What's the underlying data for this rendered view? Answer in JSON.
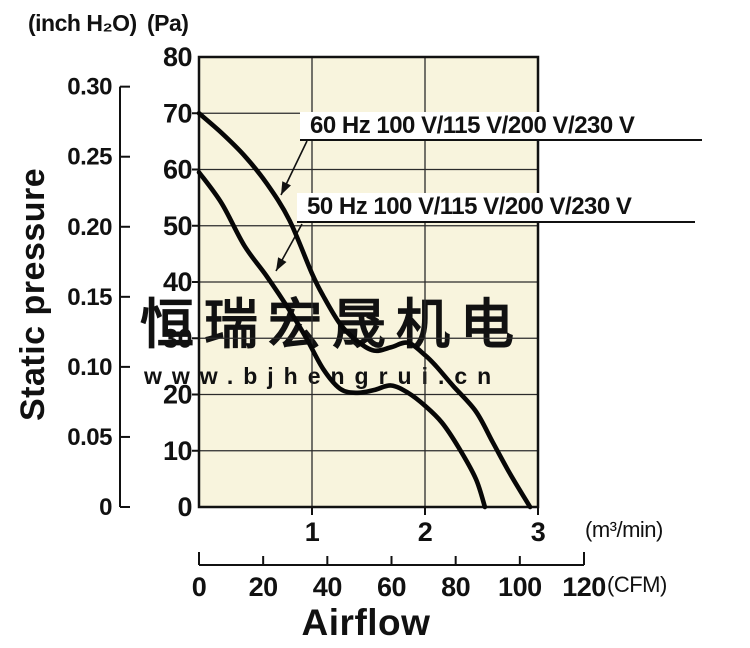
{
  "header": {
    "unit_left": "(inch H₂O)",
    "unit_right": "(Pa)"
  },
  "watermark": {
    "line1": "恒瑞宏晟机电",
    "line2": "www.bjhengrui.cn"
  },
  "colors": {
    "plot_bg": "#f8f4dd",
    "grid": "#2b2b2b",
    "box": "#111111",
    "curve": "#070707",
    "watermark1": "#c5bcb9",
    "watermark2": "#d2cdc9",
    "text": "#111111"
  },
  "chart_data": {
    "type": "line",
    "title": "",
    "xlabel": "Airflow",
    "ylabel": "Static pressure",
    "grid": true,
    "x_axis": {
      "primary_unit_label": "(m³/min)",
      "primary_ticks": [
        "1",
        "2",
        "3"
      ],
      "primary_range_m3min": [
        0,
        3
      ],
      "secondary_unit_label": "(CFM)",
      "secondary_ticks": [
        "0",
        "20",
        "40",
        "60",
        "80",
        "100",
        "120"
      ],
      "secondary_range_cfm": [
        0,
        120
      ]
    },
    "y_axis": {
      "primary_unit_label": "(Pa)",
      "primary_ticks": [
        "0",
        "10",
        "20",
        "30",
        "40",
        "50",
        "60",
        "70",
        "80"
      ],
      "primary_range_pa": [
        0,
        80
      ],
      "secondary_unit_label": "(inch H₂O)",
      "secondary_ticks": [
        "0",
        "0.05",
        "0.10",
        "0.15",
        "0.20",
        "0.25",
        "0.30"
      ],
      "secondary_range_inch_h2o": [
        0,
        0.3
      ]
    },
    "series": [
      {
        "label": "60 Hz 100 V/115 V/200 V/230 V",
        "points_m3min_pa": [
          [
            0,
            70
          ],
          [
            0.2,
            66.5
          ],
          [
            0.4,
            62.5
          ],
          [
            0.6,
            57.5
          ],
          [
            0.8,
            51
          ],
          [
            1.0,
            41.5
          ],
          [
            1.1,
            37.5
          ],
          [
            1.25,
            32.5
          ],
          [
            1.4,
            29.5
          ],
          [
            1.55,
            27.8
          ],
          [
            1.7,
            28.4
          ],
          [
            1.85,
            29.2
          ],
          [
            2.0,
            27
          ],
          [
            2.1,
            25
          ],
          [
            2.25,
            21.5
          ],
          [
            2.45,
            17
          ],
          [
            2.6,
            11.5
          ],
          [
            2.75,
            6
          ],
          [
            2.93,
            0
          ]
        ]
      },
      {
        "label": "50 Hz 100 V/115 V/200 V/230 V",
        "points_m3min_pa": [
          [
            0,
            59.5
          ],
          [
            0.2,
            54
          ],
          [
            0.4,
            46.5
          ],
          [
            0.6,
            41
          ],
          [
            0.8,
            35
          ],
          [
            0.95,
            30
          ],
          [
            1.1,
            24.5
          ],
          [
            1.25,
            21
          ],
          [
            1.4,
            20.3
          ],
          [
            1.55,
            20.8
          ],
          [
            1.7,
            21.6
          ],
          [
            1.85,
            20.3
          ],
          [
            2.0,
            18
          ],
          [
            2.15,
            15
          ],
          [
            2.3,
            10.5
          ],
          [
            2.45,
            5
          ],
          [
            2.53,
            0
          ]
        ]
      }
    ]
  }
}
